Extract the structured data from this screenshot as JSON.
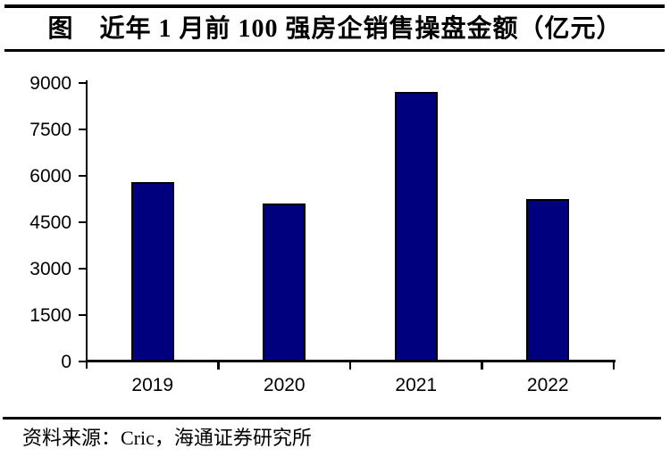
{
  "title": "图　近年 1 月前 100 强房企销售操盘金额（亿元）",
  "footer": {
    "source_label": "资料来源：Cric，海通证券研究所"
  },
  "colors": {
    "bar_fill": "#00007F",
    "bar_border": "#000000",
    "axis": "#000000",
    "text": "#000000",
    "background": "#FFFFFF"
  },
  "chart_data": {
    "type": "bar",
    "title": "近年1月前100强房企销售操盘金额（亿元）",
    "categories": [
      "2019",
      "2020",
      "2021",
      "2022"
    ],
    "values": [
      5800,
      5100,
      8700,
      5250
    ],
    "xlabel": "",
    "ylabel": "",
    "ylim": [
      0,
      9000
    ],
    "yticks": [
      0,
      1500,
      3000,
      4500,
      6000,
      7500,
      9000
    ],
    "grid": false,
    "legend": null,
    "bar_color": "#00007F",
    "bar_border_color": "#000000"
  }
}
